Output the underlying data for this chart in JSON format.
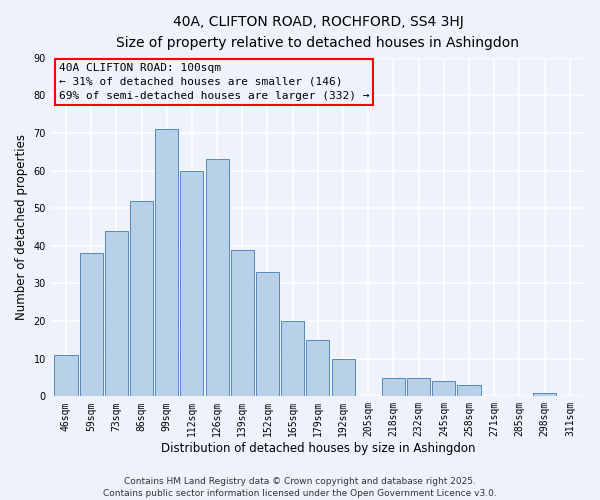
{
  "title": "40A, CLIFTON ROAD, ROCHFORD, SS4 3HJ",
  "subtitle": "Size of property relative to detached houses in Ashingdon",
  "xlabel": "Distribution of detached houses by size in Ashingdon",
  "ylabel": "Number of detached properties",
  "categories": [
    "46sqm",
    "59sqm",
    "73sqm",
    "86sqm",
    "99sqm",
    "112sqm",
    "126sqm",
    "139sqm",
    "152sqm",
    "165sqm",
    "179sqm",
    "192sqm",
    "205sqm",
    "218sqm",
    "232sqm",
    "245sqm",
    "258sqm",
    "271sqm",
    "285sqm",
    "298sqm",
    "311sqm"
  ],
  "values": [
    11,
    38,
    44,
    52,
    71,
    60,
    63,
    39,
    33,
    20,
    15,
    10,
    0,
    5,
    5,
    4,
    3,
    0,
    0,
    1,
    0
  ],
  "bar_color": "#b8d0e8",
  "bar_edge_color": "#5588bb",
  "ylim": [
    0,
    90
  ],
  "yticks": [
    0,
    10,
    20,
    30,
    40,
    50,
    60,
    70,
    80,
    90
  ],
  "annotation_title": "40A CLIFTON ROAD: 100sqm",
  "annotation_line1": "← 31% of detached houses are smaller (146)",
  "annotation_line2": "69% of semi-detached houses are larger (332) →",
  "footer_line1": "Contains HM Land Registry data © Crown copyright and database right 2025.",
  "footer_line2": "Contains public sector information licensed under the Open Government Licence v3.0.",
  "background_color": "#eef2fb",
  "grid_color": "#ffffff",
  "title_fontsize": 10,
  "subtitle_fontsize": 9,
  "axis_label_fontsize": 8.5,
  "tick_fontsize": 7,
  "annotation_fontsize": 8,
  "footer_fontsize": 6.5
}
